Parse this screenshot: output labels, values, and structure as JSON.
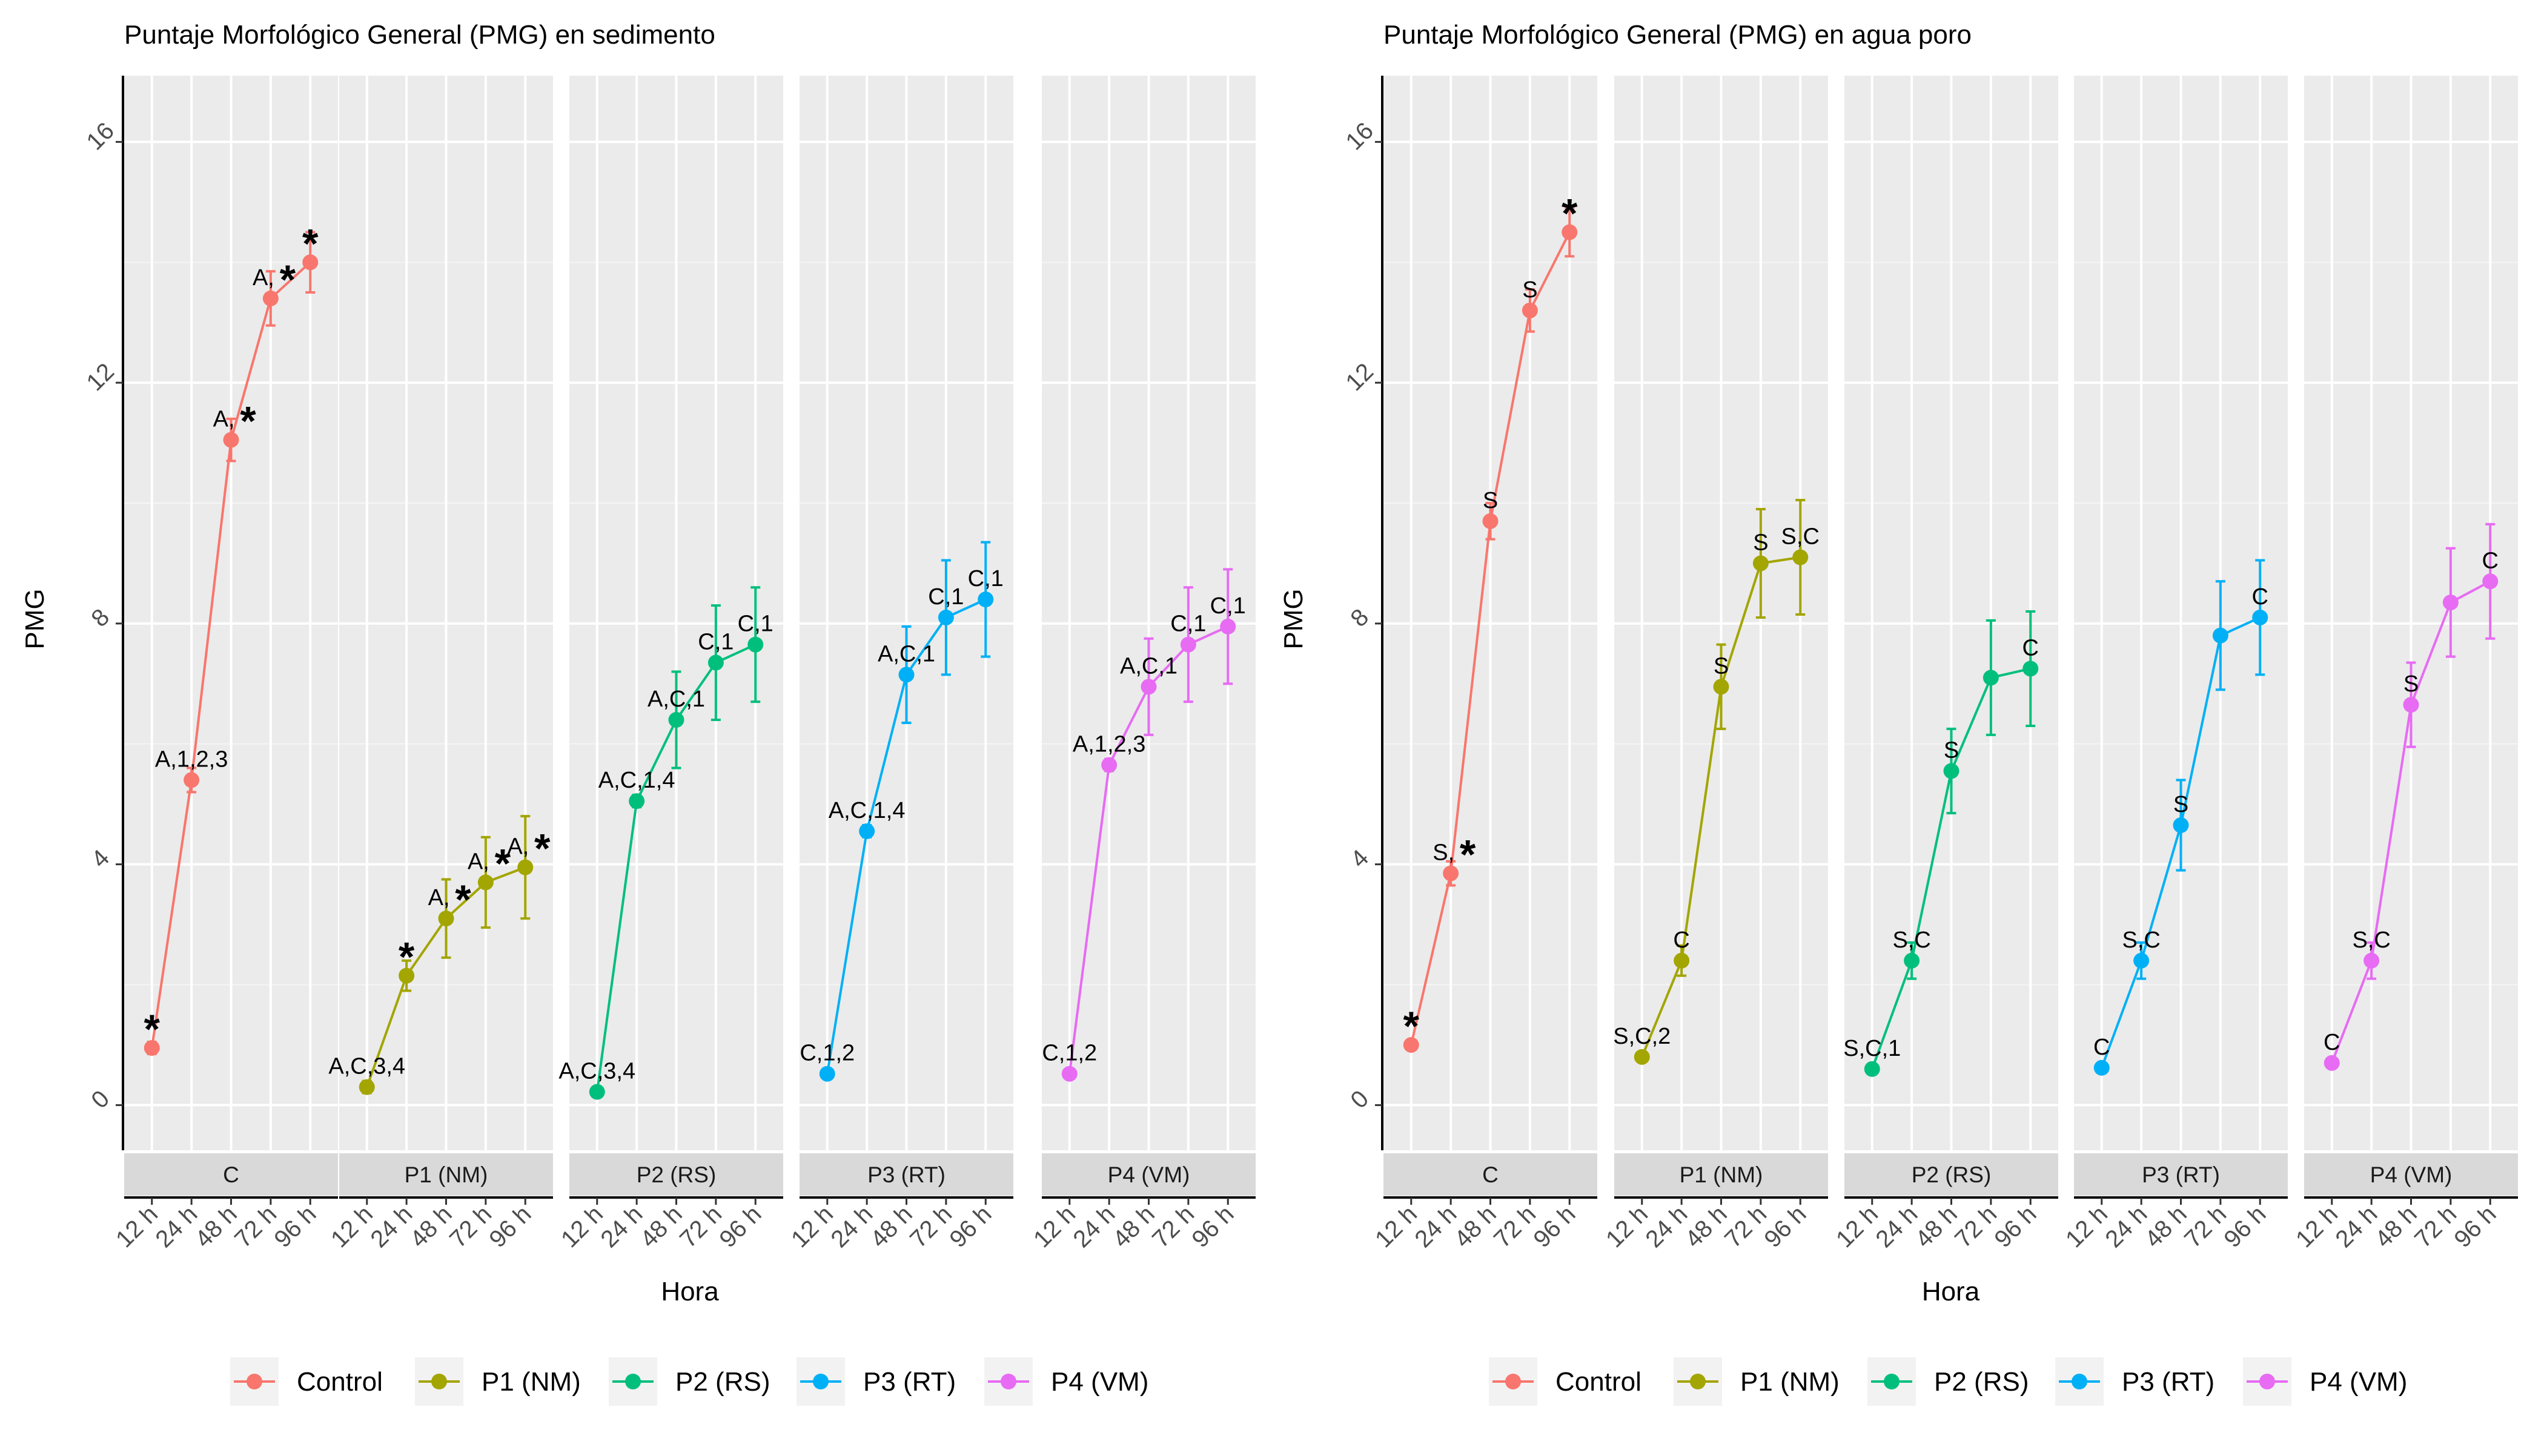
{
  "legend": {
    "items": [
      {
        "label": "Control",
        "color": "#F8766D"
      },
      {
        "label": "P1 (NM)",
        "color": "#A3A500"
      },
      {
        "label": "P2 (RS)",
        "color": "#00BF7D"
      },
      {
        "label": "P3 (RT)",
        "color": "#00B0F6"
      },
      {
        "label": "P4 (VM)",
        "color": "#E76BF3"
      }
    ]
  },
  "chart_data": [
    {
      "type": "line",
      "title": "Puntaje Morfológico General (PMG) en sedimento",
      "xlabel": "Hora",
      "ylabel": "PMG",
      "ylim": [
        -0.75,
        17.1
      ],
      "yticks": [
        0,
        4,
        8,
        12,
        16
      ],
      "x": [
        "12 h",
        "24 h",
        "48 h",
        "72 h",
        "96 h"
      ],
      "grid": true,
      "legend_position": "bottom",
      "facets": [
        {
          "label": "C",
          "series": "Control",
          "color": "#F8766D",
          "values": [
            0.95,
            5.4,
            11.05,
            13.4,
            14.0
          ],
          "err": [
            0.1,
            0.2,
            0.35,
            0.45,
            0.5
          ],
          "labels": [
            "",
            "A,1,2,3",
            "A,",
            "A,",
            ""
          ],
          "stars": [
            true,
            false,
            true,
            true,
            true
          ]
        },
        {
          "label": "P1 (NM)",
          "series": "P1 (NM)",
          "color": "#A3A500",
          "values": [
            0.3,
            2.15,
            3.1,
            3.7,
            3.95
          ],
          "err": [
            0.1,
            0.25,
            0.65,
            0.75,
            0.85
          ],
          "labels": [
            "A,C,3,4",
            "",
            "A,",
            "A,",
            "A,"
          ],
          "stars": [
            false,
            true,
            true,
            true,
            true
          ]
        },
        {
          "label": "P2 (RS)",
          "series": "P2 (RS)",
          "color": "#00BF7D",
          "values": [
            0.22,
            5.05,
            6.4,
            7.35,
            7.65
          ],
          "err": [
            0.05,
            0.1,
            0.8,
            0.95,
            0.95
          ],
          "labels": [
            "A,C,3,4",
            "A,C,1,4",
            "A,C,1",
            "C,1",
            "C,1"
          ],
          "stars": [
            false,
            false,
            false,
            false,
            false
          ]
        },
        {
          "label": "P3 (RT)",
          "series": "P3 (RT)",
          "color": "#00B0F6",
          "values": [
            0.52,
            4.55,
            7.15,
            8.1,
            8.4
          ],
          "err": [
            0.05,
            0.1,
            0.8,
            0.95,
            0.95
          ],
          "labels": [
            "C,1,2",
            "A,C,1,4",
            "A,C,1",
            "C,1",
            "C,1"
          ],
          "stars": [
            false,
            false,
            false,
            false,
            false
          ]
        },
        {
          "label": "P4 (VM)",
          "series": "P4 (VM)",
          "color": "#E76BF3",
          "values": [
            0.52,
            5.65,
            6.95,
            7.65,
            7.95
          ],
          "err": [
            0.05,
            0.1,
            0.8,
            0.95,
            0.95
          ],
          "labels": [
            "C,1,2",
            "A,1,2,3",
            "A,C,1",
            "C,1",
            "C,1"
          ],
          "stars": [
            false,
            false,
            false,
            false,
            false
          ]
        }
      ]
    },
    {
      "type": "line",
      "title": "Puntaje Morfológico General (PMG) en agua poro",
      "xlabel": "Hora",
      "ylabel": "PMG",
      "ylim": [
        -0.75,
        17.1
      ],
      "yticks": [
        0,
        4,
        8,
        12,
        16
      ],
      "x": [
        "12 h",
        "24 h",
        "48 h",
        "72 h",
        "96 h"
      ],
      "grid": true,
      "legend_position": "bottom",
      "facets": [
        {
          "label": "C",
          "series": "Control",
          "color": "#F8766D",
          "values": [
            1.0,
            3.85,
            9.7,
            13.2,
            14.5
          ],
          "err": [
            0.05,
            0.2,
            0.3,
            0.35,
            0.4
          ],
          "labels": [
            "",
            "S,",
            "S",
            "S",
            ""
          ],
          "stars": [
            true,
            true,
            false,
            false,
            true
          ]
        },
        {
          "label": "P1 (NM)",
          "series": "P1 (NM)",
          "color": "#A3A500",
          "values": [
            0.8,
            2.4,
            6.95,
            9.0,
            9.1
          ],
          "err": [
            0.05,
            0.25,
            0.7,
            0.9,
            0.95
          ],
          "labels": [
            "S,C,2",
            "C",
            "S",
            "S",
            "S,C"
          ],
          "stars": [
            false,
            false,
            false,
            false,
            false
          ]
        },
        {
          "label": "P2 (RS)",
          "series": "P2 (RS)",
          "color": "#00BF7D",
          "values": [
            0.6,
            2.4,
            5.55,
            7.1,
            7.25
          ],
          "err": [
            0.05,
            0.3,
            0.7,
            0.95,
            0.95
          ],
          "labels": [
            "S,C,1",
            "S,C",
            "S",
            "",
            "C"
          ],
          "stars": [
            false,
            false,
            false,
            false,
            false
          ]
        },
        {
          "label": "P3 (RT)",
          "series": "P3 (RT)",
          "color": "#00B0F6",
          "values": [
            0.62,
            2.4,
            4.65,
            7.8,
            8.1
          ],
          "err": [
            0.05,
            0.3,
            0.75,
            0.9,
            0.95
          ],
          "labels": [
            "C",
            "S,C",
            "S",
            "",
            "C"
          ],
          "stars": [
            false,
            false,
            false,
            false,
            false
          ]
        },
        {
          "label": "P4 (VM)",
          "series": "P4 (VM)",
          "color": "#E76BF3",
          "values": [
            0.7,
            2.4,
            6.65,
            8.35,
            8.7
          ],
          "err": [
            0.05,
            0.3,
            0.7,
            0.9,
            0.95
          ],
          "labels": [
            "C",
            "S,C",
            "S",
            "",
            "C"
          ],
          "stars": [
            false,
            false,
            false,
            false,
            false
          ]
        }
      ]
    }
  ]
}
